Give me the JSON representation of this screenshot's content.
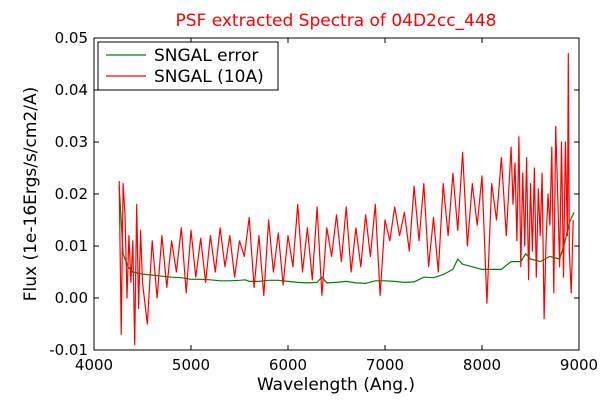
{
  "chart_data": {
    "type": "line",
    "title": "PSF extracted Spectra of 04D2cc_448",
    "xlabel": "Wavelength (Ang.)",
    "ylabel": "Flux (1e-16Ergs/s/cm2/A)",
    "xlim": [
      4000,
      9000
    ],
    "ylim": [
      -0.01,
      0.05
    ],
    "xticks": [
      4000,
      5000,
      6000,
      7000,
      8000,
      9000
    ],
    "xtick_labels": [
      "4000",
      "5000",
      "6000",
      "7000",
      "8000",
      "9000"
    ],
    "yticks": [
      -0.01,
      0.0,
      0.01,
      0.02,
      0.03,
      0.04,
      0.05
    ],
    "ytick_labels": [
      "-0.01",
      "0.00",
      "0.01",
      "0.02",
      "0.03",
      "0.04",
      "0.05"
    ],
    "grid": false,
    "legend_position": "top-left",
    "series": [
      {
        "name": "SNGAL error",
        "color": "#008000",
        "x": [
          4260,
          4300,
          4350,
          4400,
          4500,
          4600,
          4700,
          4800,
          4900,
          5000,
          5100,
          5200,
          5300,
          5400,
          5500,
          5560,
          5600,
          5700,
          5800,
          5900,
          6000,
          6100,
          6200,
          6300,
          6350,
          6400,
          6500,
          6600,
          6700,
          6800,
          6900,
          7000,
          7100,
          7200,
          7300,
          7400,
          7500,
          7600,
          7700,
          7750,
          7800,
          7900,
          8000,
          8100,
          8200,
          8300,
          8400,
          8450,
          8500,
          8600,
          8700,
          8800,
          8850,
          8900,
          8950
        ],
        "values": [
          0.0215,
          0.0085,
          0.006,
          0.005,
          0.0046,
          0.0044,
          0.0042,
          0.004,
          0.0039,
          0.0036,
          0.0036,
          0.0035,
          0.0033,
          0.0033,
          0.0034,
          0.0035,
          0.0032,
          0.0032,
          0.0034,
          0.0034,
          0.0032,
          0.003,
          0.0029,
          0.003,
          0.004,
          0.0029,
          0.003,
          0.0032,
          0.0029,
          0.0028,
          0.0033,
          0.0033,
          0.0032,
          0.003,
          0.0031,
          0.004,
          0.0039,
          0.0045,
          0.0055,
          0.0075,
          0.0065,
          0.006,
          0.0055,
          0.0055,
          0.0055,
          0.007,
          0.007,
          0.0085,
          0.0075,
          0.007,
          0.008,
          0.0075,
          0.0105,
          0.0145,
          0.0165
        ]
      },
      {
        "name": "SNGAL (10A)",
        "color": "#ff0000",
        "x": [
          4260,
          4280,
          4300,
          4320,
          4340,
          4360,
          4380,
          4400,
          4420,
          4440,
          4460,
          4480,
          4500,
          4550,
          4600,
          4650,
          4700,
          4750,
          4800,
          4850,
          4900,
          4950,
          5000,
          5050,
          5100,
          5150,
          5200,
          5250,
          5300,
          5350,
          5400,
          5450,
          5500,
          5550,
          5600,
          5650,
          5700,
          5750,
          5800,
          5850,
          5900,
          5950,
          6000,
          6050,
          6100,
          6150,
          6200,
          6250,
          6300,
          6350,
          6400,
          6450,
          6500,
          6550,
          6600,
          6650,
          6700,
          6750,
          6800,
          6850,
          6900,
          6950,
          7000,
          7050,
          7100,
          7150,
          7200,
          7250,
          7300,
          7350,
          7400,
          7450,
          7500,
          7550,
          7600,
          7650,
          7700,
          7750,
          7800,
          7850,
          7900,
          7950,
          8000,
          8050,
          8100,
          8150,
          8200,
          8250,
          8300,
          8320,
          8340,
          8360,
          8380,
          8400,
          8420,
          8440,
          8460,
          8480,
          8500,
          8520,
          8540,
          8560,
          8580,
          8600,
          8620,
          8640,
          8660,
          8680,
          8700,
          8720,
          8740,
          8760,
          8780,
          8800,
          8820,
          8840,
          8860,
          8880,
          8890,
          8900,
          8920,
          8940
        ],
        "values": [
          0.0225,
          -0.007,
          0.022,
          0.016,
          0.0,
          0.012,
          0.003,
          0.011,
          -0.009,
          0.018,
          -0.002,
          0.013,
          0.003,
          -0.005,
          0.011,
          0.0,
          0.012,
          0.002,
          0.011,
          0.005,
          0.0135,
          0.001,
          0.013,
          0.004,
          0.0115,
          0.003,
          0.012,
          0.005,
          0.0135,
          0.006,
          0.012,
          0.004,
          0.011,
          0.008,
          0.0155,
          0.002,
          0.012,
          0.0005,
          0.015,
          0.005,
          0.0125,
          0.0025,
          0.012,
          0.006,
          0.018,
          0.005,
          0.0135,
          0.0035,
          0.0175,
          0.0005,
          0.0135,
          0.008,
          0.016,
          0.007,
          0.0175,
          0.005,
          0.0135,
          0.006,
          0.016,
          0.008,
          0.018,
          0.0005,
          0.015,
          0.011,
          0.0175,
          0.012,
          0.0165,
          0.009,
          0.0215,
          0.011,
          0.022,
          0.006,
          0.0155,
          0.005,
          0.022,
          0.012,
          0.024,
          0.013,
          0.028,
          0.01,
          0.022,
          0.014,
          0.0235,
          -0.001,
          0.022,
          0.015,
          0.027,
          0.012,
          0.029,
          0.018,
          0.026,
          0.011,
          0.031,
          0.006,
          0.024,
          0.01,
          0.027,
          0.0035,
          0.022,
          0.009,
          0.025,
          0.004,
          0.021,
          0.012,
          0.024,
          -0.004,
          0.0105,
          0.02,
          0.014,
          0.029,
          0.001,
          0.033,
          0.02,
          0.006,
          0.03,
          0.004,
          0.03,
          0.012,
          0.047,
          0.009,
          0.001,
          0.015
        ]
      }
    ]
  }
}
